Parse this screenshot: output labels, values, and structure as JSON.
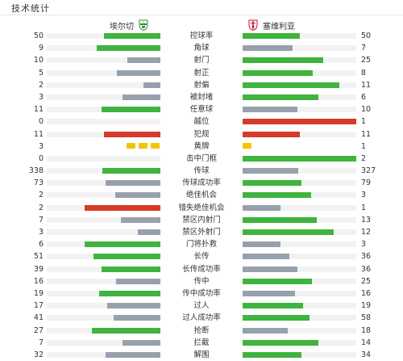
{
  "header": {
    "title": "技术统计"
  },
  "teams": {
    "home": {
      "name": "埃尔切"
    },
    "away": {
      "name": "塞维利亚"
    }
  },
  "colors": {
    "win": "#3fb43f",
    "lose": "#97a1ad",
    "red": "#d53a2a",
    "yellow": "#f5c400",
    "track": "#f2f2f2"
  },
  "stats": [
    {
      "label": "控球率",
      "home": "50",
      "away": "50",
      "home_pct": 50,
      "away_pct": 50,
      "home_color": "win",
      "away_color": "win"
    },
    {
      "label": "角球",
      "home": "9",
      "away": "7",
      "home_pct": 56,
      "away_pct": 44,
      "home_color": "win",
      "away_color": "lose"
    },
    {
      "label": "射门",
      "home": "10",
      "away": "25",
      "home_pct": 29,
      "away_pct": 71,
      "home_color": "lose",
      "away_color": "win"
    },
    {
      "label": "射正",
      "home": "5",
      "away": "8",
      "home_pct": 38,
      "away_pct": 62,
      "home_color": "lose",
      "away_color": "win"
    },
    {
      "label": "射偏",
      "home": "2",
      "away": "11",
      "home_pct": 15,
      "away_pct": 85,
      "home_color": "lose",
      "away_color": "win"
    },
    {
      "label": "被封堵",
      "home": "3",
      "away": "6",
      "home_pct": 33,
      "away_pct": 67,
      "home_color": "lose",
      "away_color": "win"
    },
    {
      "label": "任意球",
      "home": "11",
      "away": "10",
      "home_pct": 52,
      "away_pct": 48,
      "home_color": "win",
      "away_color": "lose"
    },
    {
      "label": "越位",
      "home": "0",
      "away": "1",
      "home_pct": 0,
      "away_pct": 100,
      "home_color": "red",
      "away_color": "red"
    },
    {
      "label": "犯规",
      "home": "11",
      "away": "11",
      "home_pct": 50,
      "away_pct": 50,
      "home_color": "red",
      "away_color": "red"
    },
    {
      "label": "黄牌",
      "home": "3",
      "away": "1",
      "home_cards": 3,
      "away_cards": 1,
      "type": "cards"
    },
    {
      "label": "击中门框",
      "home": "0",
      "away": "2",
      "home_pct": 0,
      "away_pct": 100,
      "home_color": "win",
      "away_color": "win"
    },
    {
      "label": "传球",
      "home": "338",
      "away": "327",
      "home_pct": 51,
      "away_pct": 49,
      "home_color": "win",
      "away_color": "lose"
    },
    {
      "label": "传球成功率",
      "home": "73",
      "away": "79",
      "home_pct": 48,
      "away_pct": 52,
      "home_color": "lose",
      "away_color": "win"
    },
    {
      "label": "绝佳机会",
      "home": "2",
      "away": "3",
      "home_pct": 40,
      "away_pct": 60,
      "home_color": "lose",
      "away_color": "win"
    },
    {
      "label": "错失绝佳机会",
      "home": "2",
      "away": "1",
      "home_pct": 67,
      "away_pct": 33,
      "home_color": "red",
      "away_color": "lose"
    },
    {
      "label": "禁区内射门",
      "home": "7",
      "away": "13",
      "home_pct": 35,
      "away_pct": 65,
      "home_color": "lose",
      "away_color": "win"
    },
    {
      "label": "禁区外射门",
      "home": "3",
      "away": "12",
      "home_pct": 20,
      "away_pct": 80,
      "home_color": "lose",
      "away_color": "win"
    },
    {
      "label": "门将扑救",
      "home": "6",
      "away": "3",
      "home_pct": 67,
      "away_pct": 33,
      "home_color": "win",
      "away_color": "lose"
    },
    {
      "label": "长传",
      "home": "51",
      "away": "36",
      "home_pct": 59,
      "away_pct": 41,
      "home_color": "win",
      "away_color": "lose"
    },
    {
      "label": "长传成功率",
      "home": "39",
      "away": "36",
      "home_pct": 52,
      "away_pct": 48,
      "home_color": "win",
      "away_color": "lose"
    },
    {
      "label": "传中",
      "home": "16",
      "away": "25",
      "home_pct": 39,
      "away_pct": 61,
      "home_color": "lose",
      "away_color": "win"
    },
    {
      "label": "传中成功率",
      "home": "19",
      "away": "16",
      "home_pct": 54,
      "away_pct": 46,
      "home_color": "win",
      "away_color": "lose"
    },
    {
      "label": "过人",
      "home": "17",
      "away": "19",
      "home_pct": 47,
      "away_pct": 53,
      "home_color": "lose",
      "away_color": "win"
    },
    {
      "label": "过人成功率",
      "home": "41",
      "away": "58",
      "home_pct": 41,
      "away_pct": 59,
      "home_color": "lose",
      "away_color": "win"
    },
    {
      "label": "抢断",
      "home": "27",
      "away": "18",
      "home_pct": 60,
      "away_pct": 40,
      "home_color": "win",
      "away_color": "lose"
    },
    {
      "label": "拦截",
      "home": "7",
      "away": "14",
      "home_pct": 33,
      "away_pct": 67,
      "home_color": "lose",
      "away_color": "win"
    },
    {
      "label": "解围",
      "home": "32",
      "away": "34",
      "home_pct": 48,
      "away_pct": 52,
      "home_color": "lose",
      "away_color": "win"
    }
  ]
}
